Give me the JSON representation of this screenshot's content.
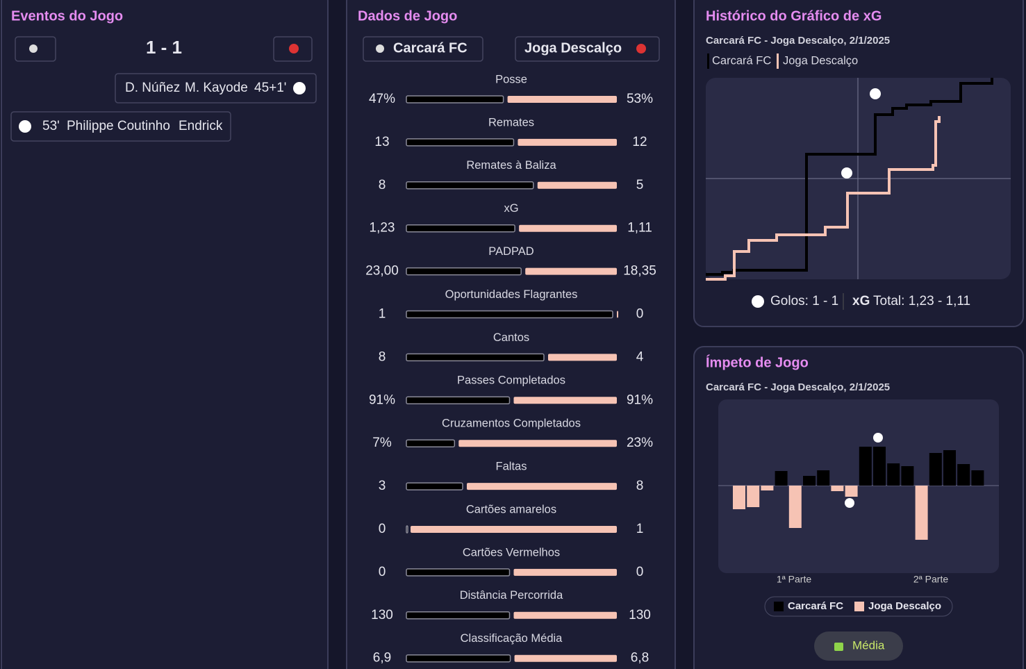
{
  "events": {
    "title": "Eventos do Jogo",
    "score": "1 - 1",
    "items": [
      {
        "players": [
          "D. Núñez",
          "M. Kayode"
        ],
        "minute": "45+1'"
      },
      {
        "minute": "53'",
        "players": [
          "Philippe Coutinho",
          "Endrick"
        ]
      }
    ]
  },
  "stats": {
    "title": "Dados de Jogo",
    "teams": [
      "Carcará FC",
      "Joga Descalço"
    ],
    "rows": [
      {
        "name": "Posse",
        "values": [
          47,
          53
        ],
        "value_labels": [
          "47%",
          "53%"
        ]
      },
      {
        "name": "Remates",
        "values": [
          13,
          12
        ]
      },
      {
        "name": "Remates à Baliza",
        "values": [
          8,
          5
        ]
      },
      {
        "name": "xG",
        "values": [
          1.23,
          1.11
        ],
        "value_labels": [
          "1,23",
          "1,11"
        ]
      },
      {
        "name": "PADPAD",
        "values": [
          23,
          18.35
        ],
        "value_labels": [
          "23,00",
          "18,35"
        ]
      },
      {
        "name": "Oportunidades Flagrantes",
        "values": [
          1,
          0
        ]
      },
      {
        "name": "Cantos",
        "values": [
          8,
          4
        ]
      },
      {
        "name": "Passes Completados",
        "values": [
          91,
          91
        ],
        "value_labels": [
          "91%",
          "91%"
        ]
      },
      {
        "name": "Cruzamentos Completados",
        "values": [
          7,
          23
        ],
        "value_labels": [
          "7%",
          "23%"
        ]
      },
      {
        "name": "Faltas",
        "values": [
          3,
          8
        ]
      },
      {
        "name": "Cartões amarelos",
        "values": [
          0,
          1
        ]
      },
      {
        "name": "Cartões Vermelhos",
        "values": [
          0,
          0
        ]
      },
      {
        "name": "Distância Percorrida",
        "values": [
          130,
          130
        ]
      },
      {
        "name": "Classificação Média",
        "values": [
          6.9,
          6.8
        ],
        "value_labels": [
          "6,9",
          "6,8"
        ]
      }
    ]
  },
  "xg": {
    "title": "Histórico do Gráfico de xG",
    "subtitle": "Carcará FC - Joga Descalço, 2/1/2025",
    "legend": [
      "Carcará FC",
      "Joga Descalço"
    ],
    "goals": "Golos: 1 - 1",
    "xg_bold": "xG",
    "xg_total": "Total: 1,23 - 1,11"
  },
  "momentum": {
    "title": "Ímpeto de Jogo",
    "subtitle": "Carcará FC - Joga Descalço, 2/1/2025",
    "values": [
      -34,
      -31,
      -7,
      21,
      -61,
      14,
      22,
      -8,
      -16,
      56,
      56,
      32,
      28,
      -78,
      47,
      51,
      31,
      22
    ],
    "halves": [
      "1ª Parte",
      "2ª Parte"
    ],
    "legend": [
      "Carcará FC",
      "Joga Descalço"
    ],
    "button": "Média"
  }
}
